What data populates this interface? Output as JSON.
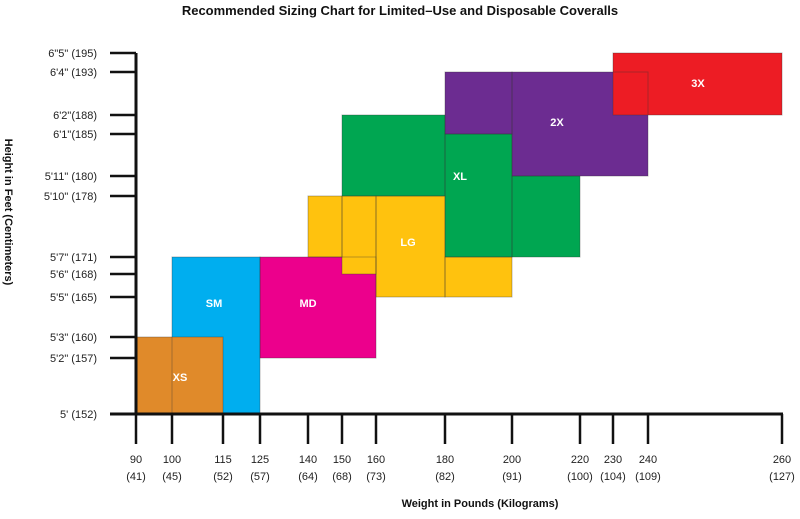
{
  "chart_data": {
    "type": "table",
    "title": "Recommended Sizing Chart for Limited–Use and Disposable Coveralls",
    "xlabel": "Weight in Pounds (Kilograms)",
    "ylabel": "Height in Feet (Centimeters)",
    "x_ticks": [
      {
        "value": 90,
        "label": "90",
        "sub": "(41)"
      },
      {
        "value": 100,
        "label": "100",
        "sub": "(45)"
      },
      {
        "value": 115,
        "label": "115",
        "sub": "(52)"
      },
      {
        "value": 125,
        "label": "125",
        "sub": "(57)"
      },
      {
        "value": 140,
        "label": "140",
        "sub": "(64)"
      },
      {
        "value": 150,
        "label": "150",
        "sub": "(68)"
      },
      {
        "value": 160,
        "label": "160",
        "sub": "(73)"
      },
      {
        "value": 180,
        "label": "180",
        "sub": "(82)"
      },
      {
        "value": 200,
        "label": "200",
        "sub": "(91)"
      },
      {
        "value": 220,
        "label": "220",
        "sub": "(100)"
      },
      {
        "value": 230,
        "label": "230",
        "sub": "(104)"
      },
      {
        "value": 240,
        "label": "240",
        "sub": "(109)"
      },
      {
        "value": 260,
        "label": "260",
        "sub": "(127)"
      }
    ],
    "y_ticks": [
      {
        "value": 195,
        "label": "6\"5\"  (195)"
      },
      {
        "value": 193,
        "label": "6'4\"  (193)"
      },
      {
        "value": 188,
        "label": "6'2\"(188)"
      },
      {
        "value": 185,
        "label": "6'1\"(185)"
      },
      {
        "value": 180,
        "label": "5'11\"  (180)"
      },
      {
        "value": 178,
        "label": "5'10\"  (178)"
      },
      {
        "value": 171,
        "label": "5'7\"  (171)"
      },
      {
        "value": 168,
        "label": "5'6\"  (168)"
      },
      {
        "value": 165,
        "label": "5'5\"  (165)"
      },
      {
        "value": 160,
        "label": "5'3\"  (160)"
      },
      {
        "value": 157,
        "label": "5'2\"  (157)"
      },
      {
        "value": 152,
        "label": "5'  (152)"
      }
    ],
    "x_units": "lb",
    "y_units": "cm",
    "sizes": [
      {
        "name": "SM",
        "color": "#00aeef",
        "regions": [
          [
            100,
            125,
            152,
            171
          ]
        ]
      },
      {
        "name": "XS",
        "color": "#e08a2a",
        "regions": [
          [
            90,
            115,
            152,
            160
          ]
        ]
      },
      {
        "name": "MD",
        "color": "#ec008c",
        "regions": [
          [
            125,
            160,
            157,
            171
          ]
        ]
      },
      {
        "name": "XL",
        "color": "#00a651",
        "regions": [
          [
            150,
            180,
            178,
            188
          ],
          [
            180,
            200,
            171,
            185
          ],
          [
            200,
            220,
            171,
            180
          ]
        ]
      },
      {
        "name": "LG",
        "color": "#ffc20e",
        "regions": [
          [
            140,
            150,
            171,
            178
          ],
          [
            150,
            160,
            168,
            178
          ],
          [
            160,
            180,
            165,
            178
          ],
          [
            180,
            200,
            165,
            171
          ]
        ]
      },
      {
        "name": "2X",
        "color": "#6c2c91",
        "regions": [
          [
            180,
            200,
            185,
            193
          ],
          [
            200,
            240,
            180,
            193
          ]
        ]
      },
      {
        "name": "3X",
        "color": "#ed1c24",
        "regions": [
          [
            230,
            260,
            188,
            195
          ]
        ]
      }
    ]
  }
}
